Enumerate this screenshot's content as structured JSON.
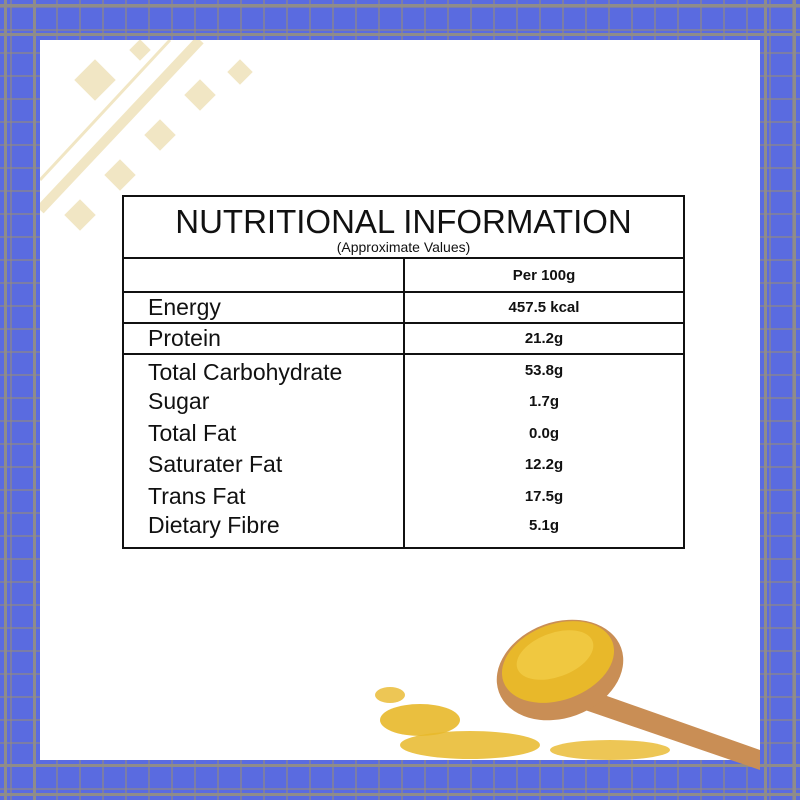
{
  "colors": {
    "frame": "#5a6be0",
    "pattern": "#f1e6c4",
    "table_border": "#111111",
    "lentil": "#e8b82a",
    "spoon": "#c98e55"
  },
  "table": {
    "title": "NUTRITIONAL INFORMATION",
    "subtitle": "(Approximate Values)",
    "column_header": "Per 100g",
    "rows": [
      {
        "label": "Energy",
        "value": "457.5 kcal"
      },
      {
        "label": "Protein",
        "value": "21.2g"
      },
      {
        "label": "Total Carbohydrate",
        "value": "53.8g"
      },
      {
        "label": "Sugar",
        "value": "1.7g"
      },
      {
        "label": "Total Fat",
        "value": "0.0g"
      },
      {
        "label": "Saturater Fat",
        "value": "12.2g"
      },
      {
        "label": "Trans Fat",
        "value": "17.5g"
      },
      {
        "label": "Dietary Fibre",
        "value": "5.1g"
      }
    ]
  }
}
